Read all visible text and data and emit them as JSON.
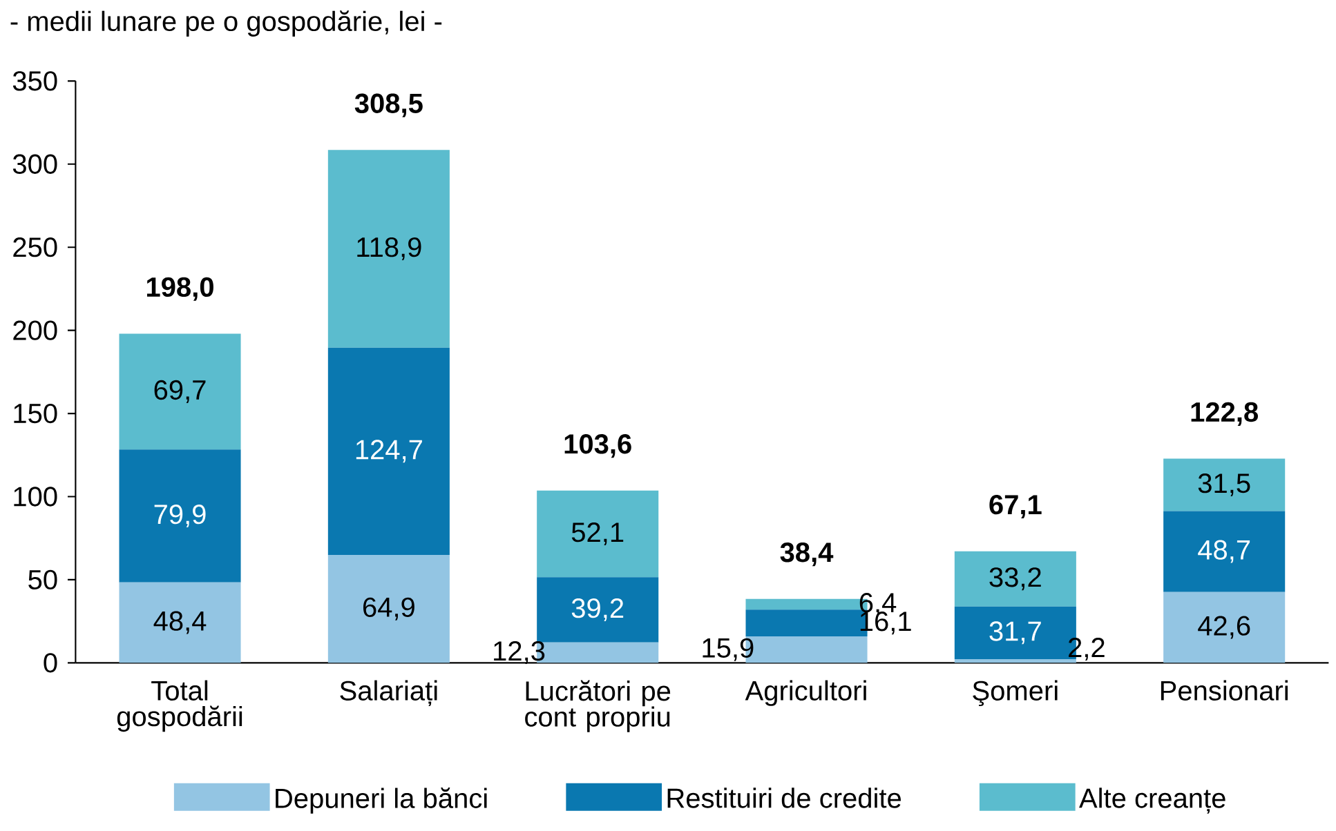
{
  "chart_data": {
    "type": "bar",
    "stacked": true,
    "title": "- medii lunare pe o gospodărie, lei -",
    "categories": [
      "Total gospodării",
      "Salariați",
      "Lucrători pe cont propriu",
      "Agricultori",
      "Şomeri",
      "Pensionari"
    ],
    "series": [
      {
        "name": "Depuneri la bănci",
        "color": "#93c5e3",
        "values": [
          48.4,
          64.9,
          12.3,
          15.9,
          2.2,
          42.6
        ],
        "value_labels": [
          "48,4",
          "64,9",
          "12,3",
          "15,9",
          "2,2",
          "42,6"
        ]
      },
      {
        "name": "Restituiri de credite",
        "color": "#0a78b0",
        "values": [
          79.9,
          124.7,
          39.2,
          16.1,
          31.7,
          48.7
        ],
        "value_labels": [
          "79,9",
          "124,7",
          "39,2",
          "16,1",
          "31,7",
          "48,7"
        ]
      },
      {
        "name": "Alte creanțe",
        "color": "#5bbcce",
        "values": [
          69.7,
          118.9,
          52.1,
          6.4,
          33.2,
          31.5
        ],
        "value_labels": [
          "69,7",
          "118,9",
          "52,1",
          "6,4",
          "33,2",
          "31,5"
        ]
      }
    ],
    "totals": [
      "198,0",
      "308,5",
      "103,6",
      "38,4",
      "67,1",
      "122,8"
    ],
    "ylim": [
      0,
      350
    ],
    "yticks": [
      0,
      50,
      100,
      150,
      200,
      250,
      300,
      350
    ],
    "grid": false,
    "legend": "bottom"
  }
}
